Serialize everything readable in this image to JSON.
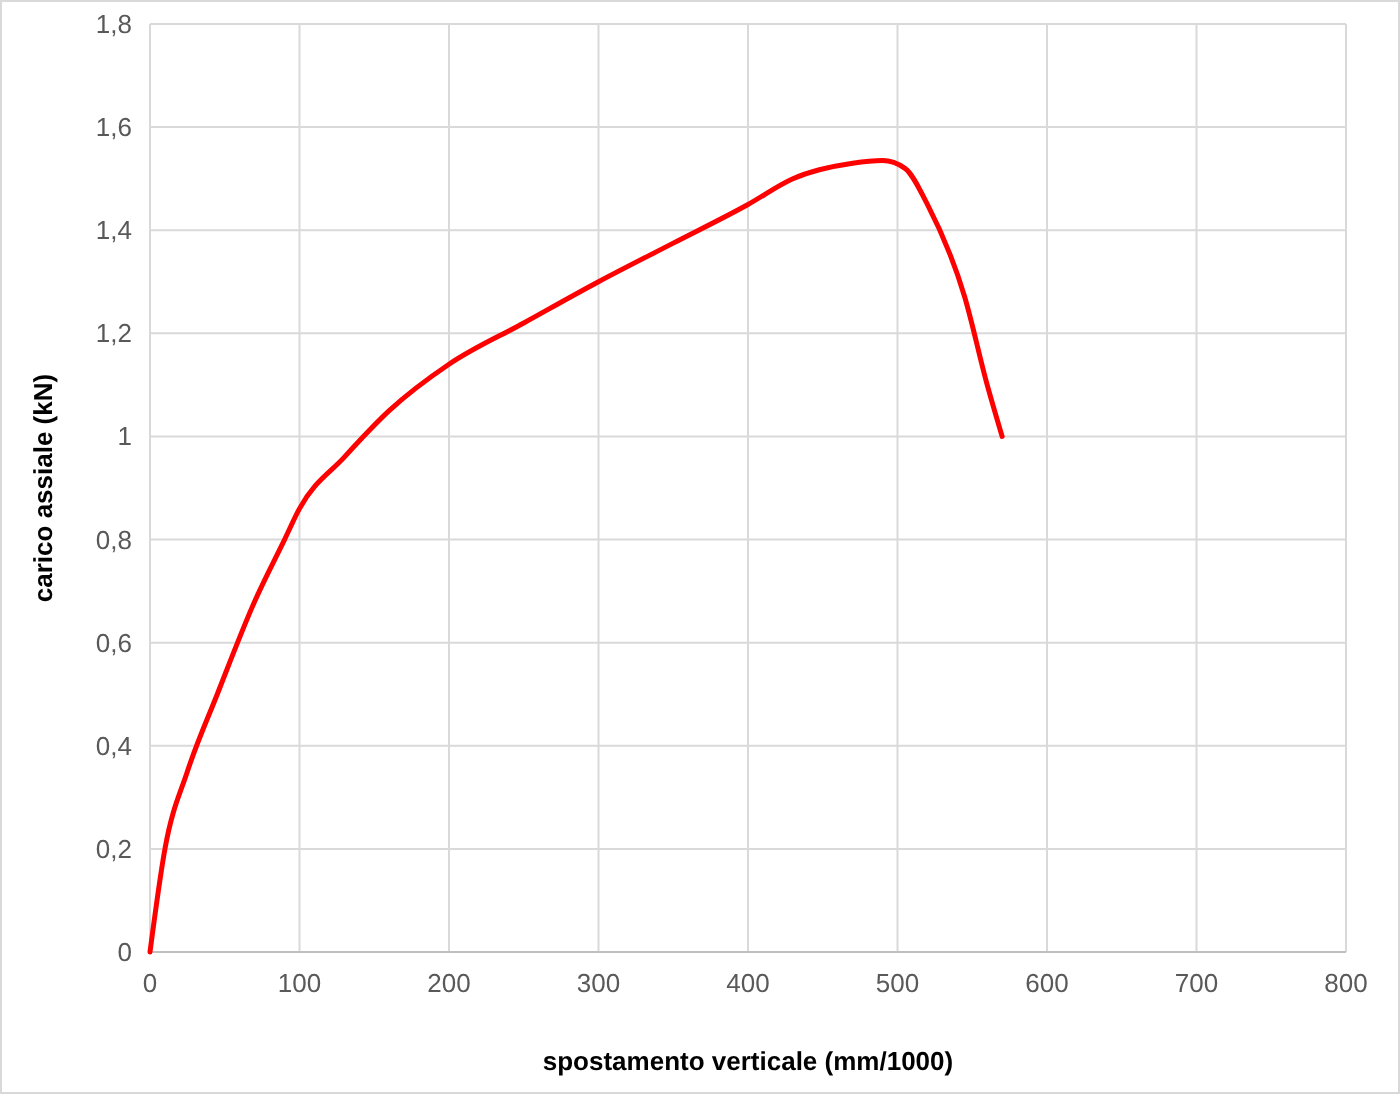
{
  "chart_data": {
    "type": "line",
    "xlabel": "spostamento verticale (mm/1000)",
    "ylabel": "carico assiale (kN)",
    "x": [
      0,
      10,
      25,
      45,
      70,
      90,
      100,
      130,
      160,
      200,
      250,
      300,
      350,
      400,
      430,
      470,
      490,
      505,
      520,
      545,
      560,
      570
    ],
    "series": [
      {
        "color": "#ff0000",
        "values": [
          0,
          0.2,
          0.35,
          0.5,
          0.68,
          0.8,
          0.86,
          0.96,
          1.05,
          1.14,
          1.22,
          1.3,
          1.375,
          1.45,
          1.5,
          1.53,
          1.535,
          1.52,
          1.45,
          1.27,
          1.1,
          1.0
        ]
      }
    ],
    "xlim": [
      0,
      800
    ],
    "xticks": [
      0,
      100,
      200,
      300,
      400,
      500,
      600,
      700,
      800
    ],
    "ylim": [
      0,
      1.8
    ],
    "yticks": [
      0,
      {
        "value": 0.2,
        "label": "0,2"
      },
      {
        "value": 0.4,
        "label": "0,4"
      },
      {
        "value": 0.6,
        "label": "0,6"
      },
      {
        "value": 0.8,
        "label": "0,8"
      },
      1,
      {
        "value": 1.2,
        "label": "1,2"
      },
      {
        "value": 1.4,
        "label": "1,4"
      },
      {
        "value": 1.6,
        "label": "1,6"
      },
      {
        "value": 1.8,
        "label": "1,8"
      }
    ],
    "grid": true,
    "marker": "none",
    "line_style": "solid"
  }
}
